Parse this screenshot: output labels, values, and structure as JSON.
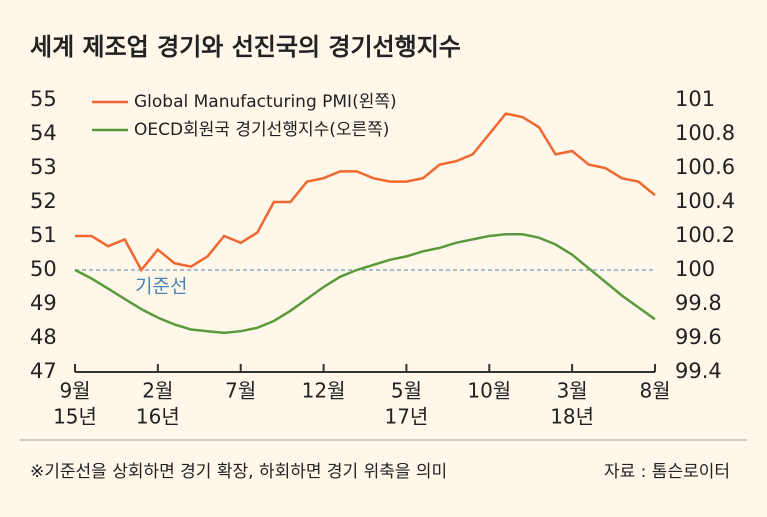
{
  "chart_data": {
    "type": "line",
    "title": "세계 제조업 경기와 선진국의 경기선행지수",
    "categories": [
      "9월",
      null,
      null,
      null,
      null,
      "2월",
      null,
      null,
      null,
      null,
      "7월",
      null,
      null,
      null,
      null,
      "12월",
      null,
      null,
      null,
      null,
      "5월",
      null,
      null,
      null,
      null,
      "10월",
      null,
      null,
      null,
      null,
      "3월",
      null,
      null,
      null,
      null,
      "8월"
    ],
    "x_sublabels": [
      "15년",
      null,
      null,
      null,
      null,
      "16년",
      null,
      null,
      null,
      null,
      null,
      null,
      null,
      null,
      null,
      null,
      null,
      null,
      null,
      null,
      "17년",
      null,
      null,
      null,
      null,
      null,
      null,
      null,
      null,
      null,
      "18년",
      null,
      null,
      null,
      null,
      null
    ],
    "series": [
      {
        "name": "Global Manufacturing PMI(왼쪽)",
        "color": "#f0672f",
        "axis": "y",
        "values": [
          51.0,
          51.0,
          50.7,
          50.9,
          50.0,
          50.6,
          50.2,
          50.1,
          50.4,
          51.0,
          50.8,
          51.1,
          52.0,
          52.0,
          52.6,
          52.7,
          52.9,
          52.9,
          52.7,
          52.6,
          52.6,
          52.7,
          53.1,
          53.2,
          53.4,
          54.0,
          54.6,
          54.5,
          54.2,
          53.4,
          53.5,
          53.1,
          53.0,
          52.7,
          52.6,
          52.2
        ]
      },
      {
        "name": "OECD회원국 경기선행지수(오른쪽)",
        "color": "#5b9a3c",
        "axis": "y2",
        "values": [
          100.0,
          99.95,
          99.89,
          99.83,
          99.77,
          99.72,
          99.68,
          99.65,
          99.64,
          99.63,
          99.64,
          99.66,
          99.7,
          99.76,
          99.83,
          99.9,
          99.96,
          100.0,
          100.03,
          100.06,
          100.08,
          100.11,
          100.13,
          100.16,
          100.18,
          100.2,
          100.21,
          100.21,
          100.19,
          100.15,
          100.09,
          100.01,
          99.93,
          99.85,
          99.78,
          99.71
        ]
      }
    ],
    "ylim": [
      47,
      55
    ],
    "yticks": [
      47,
      48,
      49,
      50,
      51,
      52,
      53,
      54,
      55
    ],
    "y2lim": [
      99.4,
      101
    ],
    "y2ticks": [
      99.4,
      99.6,
      99.8,
      100,
      100.2,
      100.4,
      100.6,
      100.8,
      101
    ],
    "reference_line": {
      "value": 50,
      "label": "기준선"
    },
    "footnote": "※기준선을 상회하면 경기 확장, 하회하면 경기 위축을 의미",
    "source": "자료 : 톰슨로이터"
  }
}
